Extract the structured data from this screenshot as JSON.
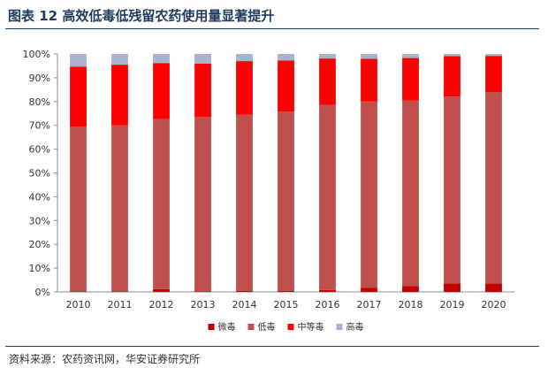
{
  "figure": {
    "title": "图表 12  高效低毒低残留农药使用量显著提升",
    "source": "资料来源：农药资讯网，华安证券研究所"
  },
  "chart_data": {
    "type": "bar",
    "stacked": true,
    "categories": [
      "2010",
      "2011",
      "2012",
      "2013",
      "2014",
      "2015",
      "2016",
      "2017",
      "2018",
      "2019",
      "2020"
    ],
    "series": [
      {
        "name": "微毒",
        "color": "#c00000",
        "values": [
          0.3,
          0.3,
          1.2,
          0.3,
          0.5,
          0.5,
          0.8,
          1.8,
          2.5,
          3.5,
          3.5
        ]
      },
      {
        "name": "低毒",
        "color": "#c0504d",
        "values": [
          69.2,
          69.7,
          71.5,
          73.2,
          74.0,
          75.3,
          77.8,
          78.2,
          78.0,
          78.6,
          80.5
        ]
      },
      {
        "name": "中等毒",
        "color": "#ff0000",
        "values": [
          25.2,
          25.5,
          23.5,
          22.5,
          22.5,
          21.5,
          19.5,
          18.0,
          17.8,
          17.0,
          15.2
        ]
      },
      {
        "name": "高毒",
        "color": "#a6b4cf",
        "values": [
          5.3,
          4.5,
          3.8,
          4.0,
          3.0,
          2.7,
          1.9,
          2.0,
          1.7,
          0.9,
          0.8
        ]
      }
    ],
    "y_ticks": [
      "0%",
      "10%",
      "20%",
      "30%",
      "40%",
      "50%",
      "60%",
      "70%",
      "80%",
      "90%",
      "100%"
    ],
    "ylim": [
      0,
      100
    ],
    "grid": false,
    "legend_position": "bottom"
  }
}
